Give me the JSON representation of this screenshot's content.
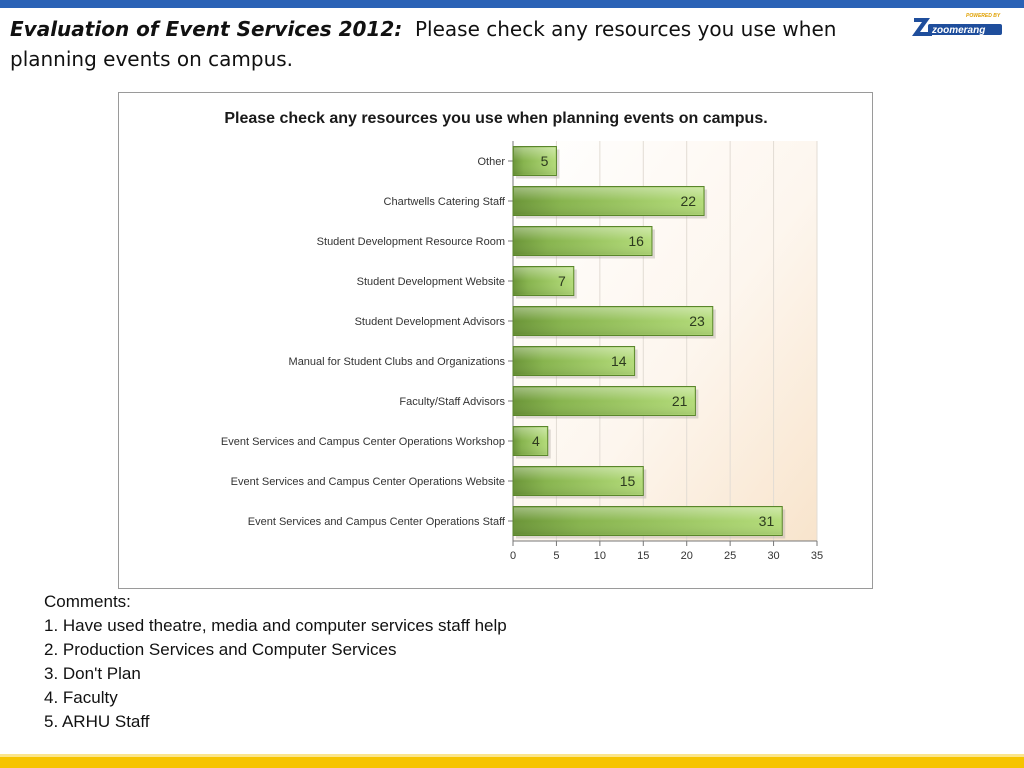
{
  "slide": {
    "title_bold": "Evaluation of Event Services 2012:",
    "title_rest": "Please check any resources you use when planning events on campus."
  },
  "logo": {
    "text": "zoomerang",
    "tag": "POWERED BY"
  },
  "chart_data": {
    "type": "bar",
    "orientation": "horizontal",
    "title": "Please check any resources you use when planning events on campus.",
    "categories": [
      "Other",
      "Chartwells Catering Staff",
      "Student Development Resource Room",
      "Student Development Website",
      "Student Development Advisors",
      "Manual for Student Clubs and Organizations",
      "Faculty/Staff Advisors",
      "Event Services and Campus Center Operations Workshop",
      "Event Services and Campus Center Operations Website",
      "Event Services and Campus Center Operations Staff"
    ],
    "values": [
      5,
      22,
      16,
      7,
      23,
      14,
      21,
      4,
      15,
      31
    ],
    "xlim": [
      0,
      35
    ],
    "xticks": [
      0,
      5,
      10,
      15,
      20,
      25,
      30,
      35
    ],
    "grid": true,
    "colors": {
      "bar_dark": "#6e9a3a",
      "bar_light": "#a8d46a",
      "bar_border": "#55802a",
      "bg_gradient_end": "#f9e7d2"
    }
  },
  "comments": {
    "heading": "Comments:",
    "items": [
      "1. Have used theatre, media and computer services staff help",
      "2. Production Services and Computer Services",
      "3. Don't Plan",
      "4. Faculty",
      "5. ARHU Staff"
    ]
  }
}
